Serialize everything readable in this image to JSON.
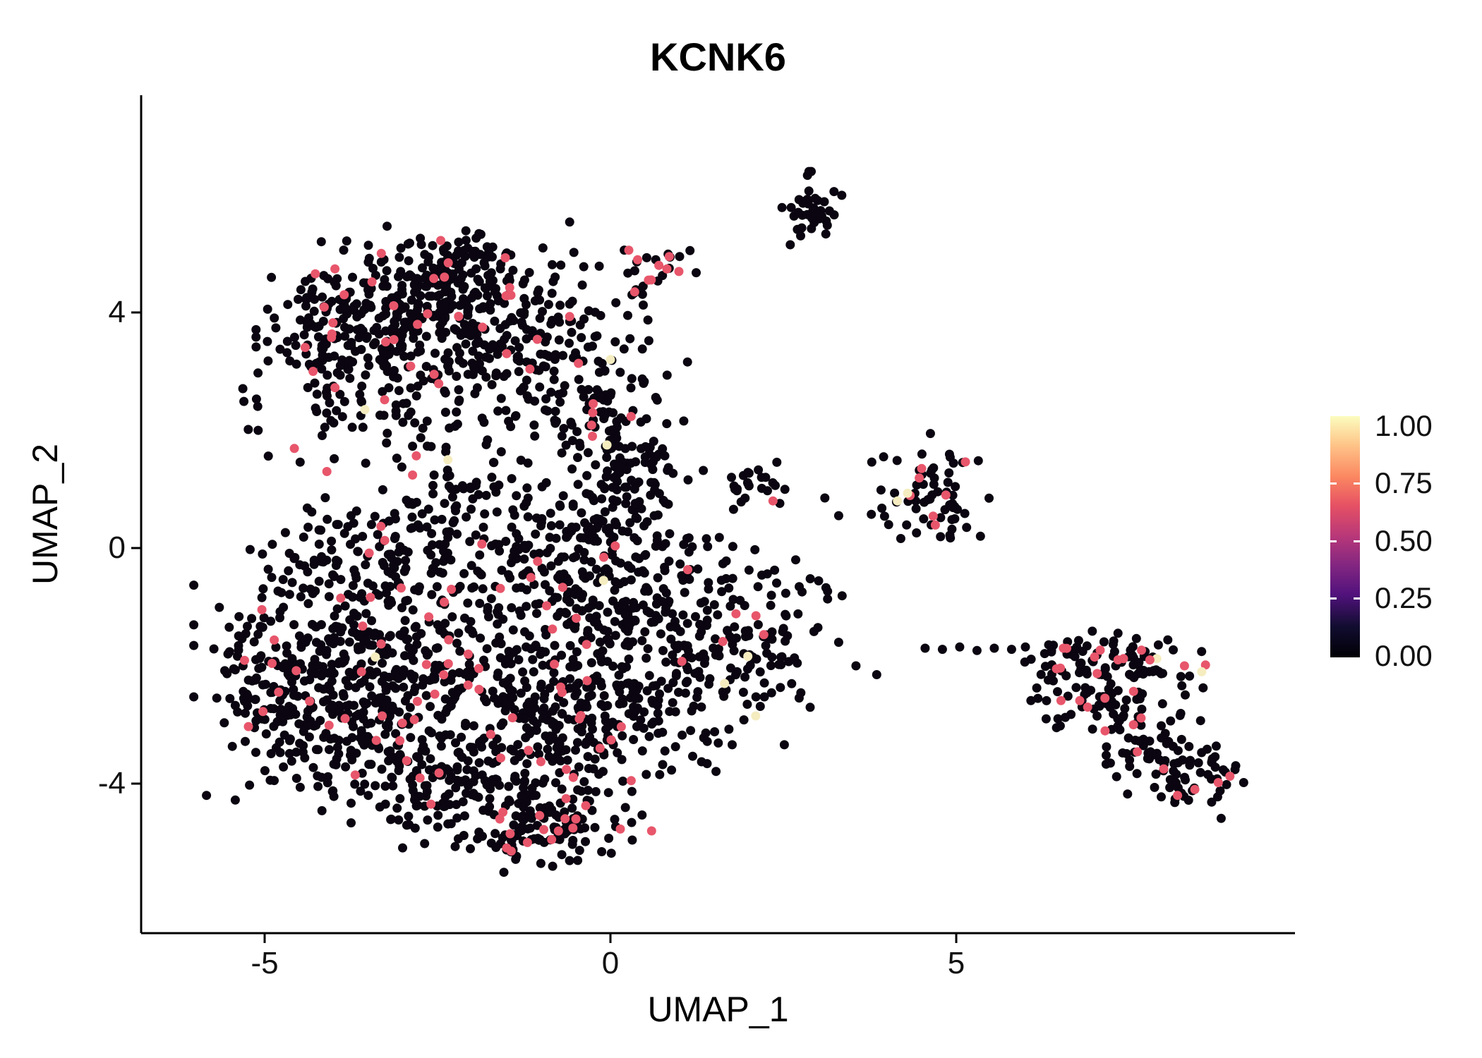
{
  "chart_data": {
    "type": "scatter",
    "title": "KCNK6",
    "xlabel": "UMAP_1",
    "ylabel": "UMAP_2",
    "xlim": [
      -6.8,
      9.8
    ],
    "ylim": [
      -6.6,
      7.7
    ],
    "x_ticks": [
      -5,
      0,
      5
    ],
    "y_ticks": [
      4,
      0,
      -4
    ],
    "grid": false,
    "background": "#ffffff",
    "legend_position": "right",
    "colorbar": {
      "labels": [
        "1.00",
        "0.75",
        "0.50",
        "0.25",
        "0.00"
      ],
      "values": [
        1.0,
        0.75,
        0.5,
        0.25,
        0.0
      ],
      "tick_values": [
        0.75,
        0.5,
        0.25
      ],
      "gradient": [
        {
          "at": 0.0,
          "color": "#000004"
        },
        {
          "at": 0.13,
          "color": "#120d31"
        },
        {
          "at": 0.26,
          "color": "#51127c"
        },
        {
          "at": 0.38,
          "color": "#822681"
        },
        {
          "at": 0.5,
          "color": "#b73779"
        },
        {
          "at": 0.63,
          "color": "#e65164"
        },
        {
          "at": 0.75,
          "color": "#fb8861"
        },
        {
          "at": 0.88,
          "color": "#fec488"
        },
        {
          "at": 1.0,
          "color": "#fcfdbf"
        }
      ]
    },
    "point_style": {
      "radius": 6.5,
      "color_zero": "#0a0510",
      "color_mid": "#e8566b",
      "color_high": "#f5edc0"
    },
    "seed": 1337,
    "clusters": [
      {
        "cx": -3.4,
        "cy": 4.2,
        "rx": 0.75,
        "ry": 0.55,
        "n": 140,
        "fm": 0.04,
        "fh": 0
      },
      {
        "cx": -2.2,
        "cy": 4.5,
        "rx": 0.7,
        "ry": 0.45,
        "n": 120,
        "fm": 0.03,
        "fh": 0
      },
      {
        "cx": -4.05,
        "cy": 3.2,
        "rx": 0.55,
        "ry": 0.5,
        "n": 90,
        "fm": 0.05,
        "fh": 0
      },
      {
        "cx": -2.7,
        "cy": 3.4,
        "rx": 0.8,
        "ry": 0.5,
        "n": 120,
        "fm": 0.04,
        "fh": 0.004
      },
      {
        "cx": -1.4,
        "cy": 3.7,
        "rx": 0.6,
        "ry": 0.65,
        "n": 100,
        "fm": 0.03,
        "fh": 0
      },
      {
        "cx": -0.5,
        "cy": 2.8,
        "rx": 0.5,
        "ry": 0.75,
        "n": 90,
        "fm": 0.03,
        "fh": 0.005
      },
      {
        "cx": 0.15,
        "cy": 2.0,
        "rx": 0.45,
        "ry": 0.6,
        "n": 55,
        "fm": 0.02,
        "fh": 0.01
      },
      {
        "cx": -3.0,
        "cy": 2.2,
        "rx": 1.0,
        "ry": 0.35,
        "n": 55,
        "fm": 0.02,
        "fh": 0.01
      },
      {
        "cx": 0.55,
        "cy": 4.6,
        "rx": 0.3,
        "ry": 0.35,
        "n": 22,
        "fm": 0.3,
        "fh": 0
      },
      {
        "cx": -2.0,
        "cy": 4.9,
        "rx": 0.5,
        "ry": 0.2,
        "n": 30,
        "fm": 0.05,
        "fh": 0
      },
      {
        "cx": -4.3,
        "cy": -1.9,
        "rx": 0.75,
        "ry": 1.0,
        "n": 200,
        "fm": 0.04,
        "fh": 0
      },
      {
        "cx": -3.2,
        "cy": -0.6,
        "rx": 0.8,
        "ry": 0.8,
        "n": 180,
        "fm": 0.04,
        "fh": 0.003
      },
      {
        "cx": -3.7,
        "cy": -3.0,
        "rx": 0.75,
        "ry": 0.7,
        "n": 160,
        "fm": 0.04,
        "fh": 0
      },
      {
        "cx": -2.3,
        "cy": -2.3,
        "rx": 0.85,
        "ry": 0.85,
        "n": 180,
        "fm": 0.045,
        "fh": 0
      },
      {
        "cx": -1.3,
        "cy": -3.6,
        "rx": 0.85,
        "ry": 0.7,
        "n": 160,
        "fm": 0.05,
        "fh": 0
      },
      {
        "cx": -0.9,
        "cy": -4.7,
        "rx": 0.65,
        "ry": 0.35,
        "n": 110,
        "fm": 0.1,
        "fh": 0
      },
      {
        "cx": -0.7,
        "cy": -1.7,
        "rx": 0.8,
        "ry": 0.8,
        "n": 150,
        "fm": 0.04,
        "fh": 0
      },
      {
        "cx": -0.5,
        "cy": -0.3,
        "rx": 0.7,
        "ry": 0.6,
        "n": 130,
        "fm": 0.03,
        "fh": 0.004
      },
      {
        "cx": 0.4,
        "cy": -2.7,
        "rx": 0.7,
        "ry": 0.7,
        "n": 130,
        "fm": 0.04,
        "fh": 0.008
      },
      {
        "cx": 1.3,
        "cy": -1.5,
        "rx": 0.8,
        "ry": 0.8,
        "n": 140,
        "fm": 0.02,
        "fh": 0
      },
      {
        "cx": 2.2,
        "cy": -1.6,
        "rx": 0.5,
        "ry": 0.6,
        "n": 60,
        "fm": 0.02,
        "fh": 0.01
      },
      {
        "cx": 0.35,
        "cy": 0.2,
        "rx": 0.55,
        "ry": 0.55,
        "n": 70,
        "fm": 0.02,
        "fh": 0
      },
      {
        "cx": -1.9,
        "cy": 0.6,
        "rx": 0.8,
        "ry": 0.45,
        "n": 90,
        "fm": 0.03,
        "fh": 0
      },
      {
        "cx": 0.3,
        "cy": 1.3,
        "rx": 0.4,
        "ry": 0.5,
        "n": 40,
        "fm": 0.02,
        "fh": 0.01
      },
      {
        "cx": -2.6,
        "cy": -4.3,
        "rx": 0.5,
        "ry": 0.4,
        "n": 60,
        "fm": 0.04,
        "fh": 0
      },
      {
        "cx": -4.9,
        "cy": -2.4,
        "rx": 0.35,
        "ry": 0.6,
        "n": 50,
        "fm": 0.05,
        "fh": 0
      },
      {
        "cx": 2.85,
        "cy": 5.75,
        "rx": 0.22,
        "ry": 0.28,
        "n": 38,
        "fm": 0,
        "fh": 0
      },
      {
        "cx": 2.1,
        "cy": 1.05,
        "rx": 0.25,
        "ry": 0.2,
        "n": 22,
        "fm": 0.04,
        "fh": 0
      },
      {
        "cx": 4.6,
        "cy": 1.0,
        "rx": 0.38,
        "ry": 0.42,
        "n": 65,
        "fm": 0.06,
        "fh": 0.01
      },
      {
        "cx": 6.6,
        "cy": -1.9,
        "rx": 0.45,
        "ry": 0.3,
        "n": 55,
        "fm": 0.07,
        "fh": 0
      },
      {
        "cx": 7.65,
        "cy": -2.0,
        "rx": 0.55,
        "ry": 0.28,
        "n": 55,
        "fm": 0.07,
        "fh": 0.008
      },
      {
        "cx": 7.1,
        "cy": -2.6,
        "rx": 0.35,
        "ry": 0.3,
        "n": 40,
        "fm": 0.05,
        "fh": 0
      },
      {
        "cx": 7.8,
        "cy": -3.3,
        "rx": 0.4,
        "ry": 0.35,
        "n": 48,
        "fm": 0.04,
        "fh": 0
      },
      {
        "cx": 8.3,
        "cy": -3.9,
        "rx": 0.42,
        "ry": 0.3,
        "n": 55,
        "fm": 0.06,
        "fh": 0
      }
    ],
    "sparse_points": [
      [
        -0.8,
        4.6
      ],
      [
        0.85,
        4.75
      ],
      [
        1.0,
        4.95
      ],
      [
        1.15,
        5.05
      ],
      [
        0.25,
        3.95
      ],
      [
        2.6,
        5.15
      ],
      [
        2.75,
        5.3
      ],
      [
        1.75,
        1.2
      ],
      [
        1.8,
        1.0
      ],
      [
        3.1,
        0.85
      ],
      [
        3.3,
        0.55
      ],
      [
        3.95,
        1.55
      ],
      [
        5.15,
        0.35
      ],
      [
        5.35,
        0.2
      ],
      [
        3.0,
        -1.35
      ],
      [
        3.3,
        -1.6
      ],
      [
        3.55,
        -2.0
      ],
      [
        3.85,
        -2.15
      ],
      [
        4.55,
        -1.7
      ],
      [
        4.8,
        -1.72
      ],
      [
        5.05,
        -1.68
      ],
      [
        5.3,
        -1.74
      ],
      [
        5.55,
        -1.7
      ],
      [
        5.8,
        -1.72
      ],
      [
        6.0,
        -1.68
      ],
      [
        6.3,
        -2.9
      ],
      [
        6.45,
        -3.05
      ]
    ],
    "highlight_points": {
      "mid": [
        [
          -4.3,
          3.0
        ],
        [
          -3.85,
          4.3
        ],
        [
          -3.25,
          3.5
        ],
        [
          -2.55,
          2.95
        ],
        [
          -2.4,
          4.6
        ],
        [
          -1.85,
          3.75
        ],
        [
          -1.5,
          3.3
        ],
        [
          -0.25,
          2.45
        ],
        [
          0.35,
          4.35
        ],
        [
          0.55,
          4.55
        ],
        [
          0.7,
          4.8
        ],
        [
          0.85,
          4.95
        ],
        [
          -4.1,
          1.3
        ],
        [
          -3.9,
          -0.85
        ],
        [
          -4.35,
          -2.6
        ],
        [
          -3.6,
          -2.1
        ],
        [
          -3.3,
          -2.85
        ],
        [
          -2.3,
          -0.7
        ],
        [
          -1.9,
          -2.4
        ],
        [
          -1.15,
          -0.5
        ],
        [
          -0.7,
          -2.45
        ],
        [
          -0.45,
          -2.9
        ],
        [
          -0.15,
          -3.4
        ],
        [
          0.3,
          -3.95
        ],
        [
          -1.6,
          -4.6
        ],
        [
          -1.45,
          -4.85
        ],
        [
          -1.2,
          -5.0
        ],
        [
          -0.85,
          -4.95
        ],
        [
          -0.5,
          -4.6
        ],
        [
          2.35,
          0.8
        ],
        [
          4.5,
          1.35
        ],
        [
          4.85,
          0.9
        ],
        [
          6.45,
          -2.05
        ],
        [
          6.55,
          -1.7
        ],
        [
          7.0,
          -1.85
        ],
        [
          7.8,
          -1.9
        ],
        [
          8.3,
          -2.0
        ],
        [
          7.15,
          -2.55
        ],
        [
          6.9,
          -2.7
        ],
        [
          8.0,
          -3.75
        ],
        [
          8.45,
          -4.1
        ],
        [
          8.2,
          -4.2
        ]
      ],
      "high": [
        [
          -3.55,
          2.35
        ],
        [
          -2.35,
          1.5
        ],
        [
          -0.05,
          1.75
        ],
        [
          0.0,
          3.2
        ],
        [
          -0.1,
          -0.55
        ],
        [
          -3.4,
          -1.85
        ],
        [
          1.65,
          -2.3
        ],
        [
          2.1,
          -2.85
        ],
        [
          4.15,
          0.8
        ],
        [
          8.55,
          -2.1
        ]
      ]
    }
  }
}
